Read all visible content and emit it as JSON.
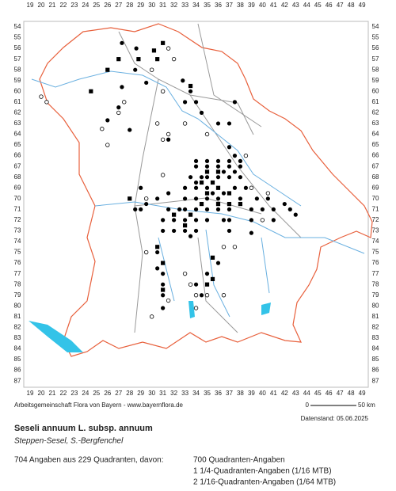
{
  "columns": [
    19,
    20,
    21,
    22,
    23,
    24,
    25,
    26,
    27,
    28,
    29,
    30,
    31,
    32,
    33,
    34,
    35,
    36,
    37,
    38,
    39,
    40,
    41,
    42,
    43,
    44,
    45,
    46,
    47,
    48,
    49
  ],
  "rows": [
    54,
    55,
    56,
    57,
    58,
    59,
    60,
    61,
    62,
    63,
    64,
    65,
    66,
    67,
    68,
    69,
    70,
    71,
    72,
    73,
    74,
    75,
    76,
    77,
    78,
    79,
    80,
    81,
    82,
    83,
    84,
    85,
    86,
    87
  ],
  "markers": {
    "dots": [
      [
        27.3,
        55.5
      ],
      [
        28.6,
        56
      ],
      [
        28.5,
        58
      ],
      [
        29.5,
        59.2
      ],
      [
        32.8,
        59
      ],
      [
        27.3,
        59.6
      ],
      [
        33.5,
        60
      ],
      [
        33,
        61
      ],
      [
        34,
        61
      ],
      [
        37.5,
        61
      ],
      [
        27,
        61.5
      ],
      [
        34.5,
        62
      ],
      [
        26,
        62.7
      ],
      [
        36,
        63
      ],
      [
        37,
        63
      ],
      [
        28,
        63.6
      ],
      [
        31.5,
        64.5
      ],
      [
        37,
        65.2
      ],
      [
        37.5,
        66
      ],
      [
        34,
        66.5
      ],
      [
        35,
        66.5
      ],
      [
        36,
        66.5
      ],
      [
        37,
        66.5
      ],
      [
        38,
        66.5
      ],
      [
        34,
        67
      ],
      [
        35,
        67
      ],
      [
        36,
        67
      ],
      [
        37,
        67
      ],
      [
        38,
        67
      ],
      [
        33.5,
        68
      ],
      [
        34.5,
        68
      ],
      [
        36,
        68
      ],
      [
        37,
        68
      ],
      [
        38,
        68
      ],
      [
        33,
        69
      ],
      [
        34,
        69
      ],
      [
        35,
        69
      ],
      [
        37.5,
        69
      ],
      [
        38.5,
        69
      ],
      [
        31.5,
        69.5
      ],
      [
        33,
        70
      ],
      [
        34,
        70
      ],
      [
        35,
        70
      ],
      [
        36,
        70
      ],
      [
        38,
        70
      ],
      [
        39.5,
        70
      ],
      [
        40.5,
        70
      ],
      [
        29,
        69
      ],
      [
        29.5,
        70.5
      ],
      [
        30.5,
        70
      ],
      [
        28.5,
        71
      ],
      [
        29,
        71
      ],
      [
        31.5,
        71
      ],
      [
        32.5,
        71
      ],
      [
        33,
        71
      ],
      [
        34,
        71
      ],
      [
        35,
        71
      ],
      [
        36,
        71
      ],
      [
        37,
        71
      ],
      [
        39,
        71
      ],
      [
        40,
        71
      ],
      [
        41,
        71
      ],
      [
        42,
        70.5
      ],
      [
        31,
        72
      ],
      [
        32,
        72
      ],
      [
        33,
        72
      ],
      [
        34,
        72
      ],
      [
        35,
        72
      ],
      [
        36.5,
        72
      ],
      [
        37,
        72
      ],
      [
        39,
        72
      ],
      [
        41,
        72
      ],
      [
        43,
        71.5
      ],
      [
        31,
        73
      ],
      [
        32,
        73
      ],
      [
        33,
        73
      ],
      [
        34,
        73
      ],
      [
        37,
        73
      ],
      [
        39,
        73.2
      ],
      [
        33.5,
        73.5
      ],
      [
        30.5,
        75
      ],
      [
        30.5,
        76.5
      ],
      [
        31,
        77
      ],
      [
        31,
        78
      ],
      [
        31,
        79
      ],
      [
        31,
        80.2
      ],
      [
        35,
        77
      ],
      [
        36,
        76
      ],
      [
        34,
        78
      ],
      [
        34.5,
        79
      ],
      [
        42.5,
        71
      ],
      [
        34,
        68.5
      ],
      [
        35,
        68
      ],
      [
        36.5,
        67.5
      ],
      [
        37.5,
        67.5
      ],
      [
        35.5,
        69.5
      ],
      [
        36.5,
        69.5
      ]
    ],
    "squares": [
      [
        31,
        55.5
      ],
      [
        30.2,
        56.2
      ],
      [
        27,
        57
      ],
      [
        28.8,
        57
      ],
      [
        30.5,
        57
      ],
      [
        26,
        58
      ],
      [
        33.5,
        59.5
      ],
      [
        24.5,
        60
      ],
      [
        35,
        67.5
      ],
      [
        36,
        67.5
      ],
      [
        34.5,
        68.5
      ],
      [
        35.5,
        68.5
      ],
      [
        36,
        69
      ],
      [
        35,
        69.5
      ],
      [
        37,
        69.5
      ],
      [
        34.5,
        70.5
      ],
      [
        36,
        70.5
      ],
      [
        38,
        70.5
      ],
      [
        28,
        70
      ],
      [
        32,
        71.5
      ],
      [
        33.5,
        71.5
      ],
      [
        33,
        72.5
      ],
      [
        37,
        70.5
      ],
      [
        30.5,
        74.5
      ],
      [
        31,
        76
      ],
      [
        35.5,
        77.5
      ],
      [
        35,
        78
      ],
      [
        31,
        78.5
      ],
      [
        35.5,
        75.5
      ]
    ],
    "circles": [
      [
        31.5,
        56
      ],
      [
        32,
        57
      ],
      [
        30,
        58
      ],
      [
        31,
        60
      ],
      [
        20.5,
        61
      ],
      [
        27.5,
        61
      ],
      [
        27,
        62
      ],
      [
        30.5,
        63
      ],
      [
        33,
        63
      ],
      [
        25.5,
        63.5
      ],
      [
        31.5,
        64
      ],
      [
        35,
        64
      ],
      [
        31,
        64.5
      ],
      [
        26,
        65
      ],
      [
        38.5,
        66
      ],
      [
        31,
        67.8
      ],
      [
        39,
        69
      ],
      [
        40.5,
        69.5
      ],
      [
        29.5,
        70
      ],
      [
        40,
        72
      ],
      [
        36.5,
        74.5
      ],
      [
        37.5,
        74.5
      ],
      [
        29.5,
        75
      ],
      [
        33,
        77
      ],
      [
        33.5,
        78
      ],
      [
        34,
        79
      ],
      [
        35,
        79
      ],
      [
        36.5,
        79
      ],
      [
        31.5,
        79.5
      ],
      [
        34,
        80.2
      ],
      [
        30,
        81
      ],
      [
        20,
        60.5
      ]
    ]
  },
  "credit": "Arbeitsgemeinschaft Flora von Bayern - www.bayernflora.de",
  "scale": {
    "start": "0",
    "end": "50 km"
  },
  "date": "Datenstand: 05.06.2025",
  "title": "Seseli annuum L. subsp. annuum",
  "subtitle": "Steppen-Sesel, S.-Bergfenchel",
  "summary": "704 Angaben aus 229 Quadranten, davon:",
  "details": [
    "700 Quadranten-Angaben",
    "1 1/4-Quadranten-Angaben (1/16 MTB)",
    "2 1/16-Quadranten-Angaben (1/64 MTB)"
  ]
}
